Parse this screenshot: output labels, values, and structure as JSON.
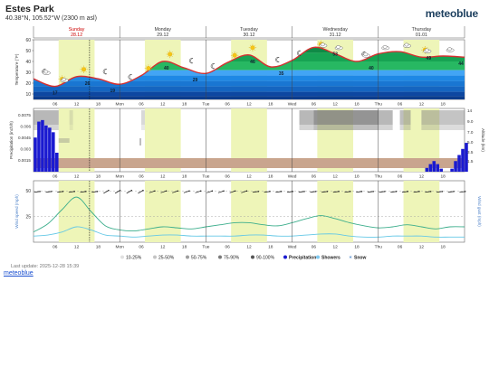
{
  "header": {
    "title": "Estes Park",
    "coords": "40.38°N, 105.52°W (2300 m asl)",
    "brand": "meteoblue"
  },
  "footer": {
    "last_update": "Last update: 2025-12-28 15:39",
    "link": "meteoblue"
  },
  "colors": {
    "accent_current_day": "#cc0000",
    "daylight_band": "#eef5b8",
    "temp_curve": "#d63030",
    "temp_fill_warm": "#1fae5c",
    "temp_fill_cold": "#1565c0",
    "precip_bar": "#1a1ad0",
    "cloud": "#7d7d7d",
    "snow_ground": "#c9a58e",
    "wind_line": "#3cae8c",
    "gust_line": "#64c8e6"
  },
  "chart_data": [
    {
      "type": "line",
      "panel": "temperature",
      "days": [
        {
          "name": "Sunday",
          "date": "28.12"
        },
        {
          "name": "Monday",
          "date": "29.12"
        },
        {
          "name": "Tuesday",
          "date": "30.12"
        },
        {
          "name": "Wednesday",
          "date": "31.12"
        },
        {
          "name": "Thursday",
          "date": "01.01"
        }
      ],
      "x_hours": [
        0,
        6,
        12,
        18,
        24,
        30,
        36,
        42,
        48,
        54,
        60,
        66,
        72,
        78,
        84,
        90,
        96,
        102,
        108,
        114,
        120
      ],
      "x_tick_labels": [
        "06",
        "12",
        "18",
        "Mon",
        "06",
        "12",
        "18",
        "Tue",
        "06",
        "12",
        "18",
        "Wed",
        "06",
        "12",
        "18",
        "Thu",
        "06",
        "12",
        "18"
      ],
      "x_tick_hours": [
        6,
        12,
        18,
        24,
        30,
        36,
        42,
        48,
        54,
        60,
        66,
        72,
        78,
        84,
        90,
        96,
        102,
        108,
        114
      ],
      "temperature_f": [
        24,
        17,
        26,
        24,
        19,
        27,
        40,
        34,
        29,
        39,
        46,
        35,
        41,
        53,
        47,
        40,
        47,
        49,
        44,
        45,
        44
      ],
      "value_labels": [
        {
          "hour": 6,
          "value": "17"
        },
        {
          "hour": 15,
          "value": "26"
        },
        {
          "hour": 22,
          "value": "19"
        },
        {
          "hour": 37,
          "value": "40"
        },
        {
          "hour": 45,
          "value": "29"
        },
        {
          "hour": 61,
          "value": "46"
        },
        {
          "hour": 69,
          "value": "35"
        },
        {
          "hour": 84,
          "value": "53"
        },
        {
          "hour": 94,
          "value": "40"
        },
        {
          "hour": 110,
          "value": "49"
        },
        {
          "hour": 119,
          "value": "44"
        }
      ],
      "ylabel": "Temperature (°F)",
      "ylim": [
        5,
        60
      ],
      "y_ticks": [
        10,
        20,
        30,
        40,
        50,
        60
      ],
      "current_hour": 15.6
    },
    {
      "type": "bar",
      "panel": "precipitation",
      "ylabel": "Precipitation (inch/h)",
      "y2label": "Altitude (km)",
      "ylim": [
        0,
        0.0075
      ],
      "y_ticks": [
        "0.0015",
        "0.003",
        "0.0045",
        "0.006",
        "0.0075"
      ],
      "y2_ticks": [
        "1.5",
        "3.5",
        "5.0",
        "7.0",
        "9.0",
        "14"
      ],
      "bar_hours": [
        0,
        1,
        2,
        3,
        4,
        5,
        6,
        109,
        110,
        111,
        112,
        113,
        116,
        117,
        118,
        119,
        120
      ],
      "bar_values": [
        0.0045,
        0.0066,
        0.0068,
        0.0061,
        0.0058,
        0.0052,
        0.0025,
        0.0005,
        0.001,
        0.0014,
        0.001,
        0.0004,
        0.0004,
        0.0014,
        0.0022,
        0.003,
        0.0038
      ]
    },
    {
      "type": "line",
      "panel": "wind",
      "ylabel": "Wind speed (mph)",
      "y2label": "Wind gust (mph)",
      "ylim": [
        0,
        60
      ],
      "y_ticks": [
        25,
        50
      ],
      "x_hours": [
        0,
        4,
        8,
        12,
        16,
        20,
        24,
        28,
        32,
        36,
        40,
        44,
        48,
        52,
        56,
        60,
        64,
        68,
        72,
        76,
        80,
        84,
        88,
        92,
        96,
        100,
        104,
        108,
        112,
        116,
        120
      ],
      "wind_speed_mph": [
        6,
        7,
        10,
        15,
        12,
        7,
        6,
        5,
        6,
        7,
        7,
        6,
        6,
        6,
        6,
        7,
        7,
        6,
        6,
        7,
        8,
        8,
        6,
        5,
        5,
        6,
        6,
        6,
        5,
        5,
        5
      ],
      "wind_gust_mph": [
        10,
        18,
        32,
        44,
        30,
        16,
        12,
        11,
        13,
        15,
        14,
        13,
        15,
        17,
        19,
        19,
        17,
        16,
        19,
        23,
        26,
        23,
        19,
        16,
        14,
        15,
        17,
        15,
        13,
        15,
        15
      ]
    }
  ],
  "legend": {
    "items": [
      {
        "label": "10-25%"
      },
      {
        "label": "25-50%"
      },
      {
        "label": "50-75%"
      },
      {
        "label": "75-90%"
      },
      {
        "label": "90-100%"
      },
      {
        "label": "Precipitation"
      },
      {
        "label": "Showers"
      },
      {
        "label": "Snow"
      }
    ]
  }
}
